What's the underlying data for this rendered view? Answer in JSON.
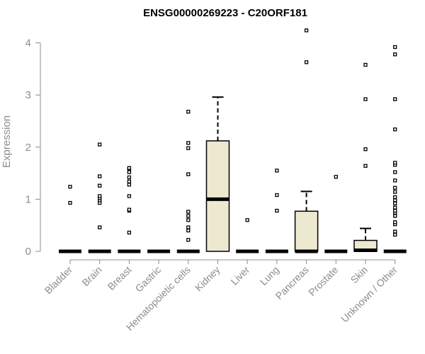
{
  "chart_data": {
    "type": "box",
    "title": "ENSG00000269223 - C20ORF181",
    "ylabel": "Expression",
    "xlabel": "",
    "ylim": [
      0,
      4.3
    ],
    "yticks": [
      "0",
      "1",
      "2",
      "3",
      "4"
    ],
    "box_fill": "#ede8d0",
    "categories": [
      "Bladder",
      "Brain",
      "Breast",
      "Gastric",
      "Hematopoietic cells",
      "Kidney",
      "Liver",
      "Lung",
      "Pancreas",
      "Prostate",
      "Skin",
      "Unknown / Other"
    ],
    "boxes": [
      {
        "q1": 0,
        "median": 0,
        "q3": 0,
        "whisker_low": 0,
        "whisker_high": 0,
        "outliers": [
          0.93,
          1.24
        ]
      },
      {
        "q1": 0,
        "median": 0,
        "q3": 0,
        "whisker_low": 0,
        "whisker_high": 0,
        "outliers": [
          0.46,
          0.93,
          0.98,
          1.02,
          1.06,
          1.26,
          1.44,
          2.05
        ]
      },
      {
        "q1": 0,
        "median": 0,
        "q3": 0,
        "whisker_low": 0,
        "whisker_high": 0,
        "outliers": [
          0.36,
          0.78,
          0.8,
          1.06,
          1.28,
          1.34,
          1.42,
          1.52,
          1.58,
          1.6
        ]
      },
      {
        "q1": 0,
        "median": 0,
        "q3": 0,
        "whisker_low": 0,
        "whisker_high": 0,
        "outliers": []
      },
      {
        "q1": 0,
        "median": 0,
        "q3": 0,
        "whisker_low": 0,
        "whisker_high": 0,
        "outliers": [
          0.22,
          0.4,
          0.46,
          0.6,
          0.68,
          0.76,
          1.48,
          1.98,
          2.08,
          2.68
        ]
      },
      {
        "q1": 0,
        "median": 1.0,
        "q3": 2.12,
        "whisker_low": 0,
        "whisker_high": 2.96,
        "outliers": []
      },
      {
        "q1": 0,
        "median": 0,
        "q3": 0,
        "whisker_low": 0,
        "whisker_high": 0,
        "outliers": [
          0.6
        ]
      },
      {
        "q1": 0,
        "median": 0,
        "q3": 0,
        "whisker_low": 0,
        "whisker_high": 0,
        "outliers": [
          0.78,
          1.08,
          1.55
        ]
      },
      {
        "q1": 0,
        "median": 0,
        "q3": 0.77,
        "whisker_low": 0,
        "whisker_high": 1.15,
        "outliers": [
          3.63,
          4.24
        ]
      },
      {
        "q1": 0,
        "median": 0,
        "q3": 0,
        "whisker_low": 0,
        "whisker_high": 0,
        "outliers": [
          1.43
        ]
      },
      {
        "q1": 0,
        "median": 0.02,
        "q3": 0.21,
        "whisker_low": 0,
        "whisker_high": 0.44,
        "outliers": [
          1.64,
          1.96,
          2.92,
          3.58
        ]
      },
      {
        "q1": 0,
        "median": 0,
        "q3": 0,
        "whisker_low": 0,
        "whisker_high": 0,
        "outliers": [
          0.32,
          0.38,
          0.52,
          0.56,
          0.68,
          0.74,
          0.78,
          0.84,
          0.92,
          0.98,
          1.04,
          1.14,
          1.22,
          1.36,
          1.52,
          1.66,
          1.7,
          2.34,
          2.92,
          3.78,
          3.92
        ]
      }
    ]
  }
}
